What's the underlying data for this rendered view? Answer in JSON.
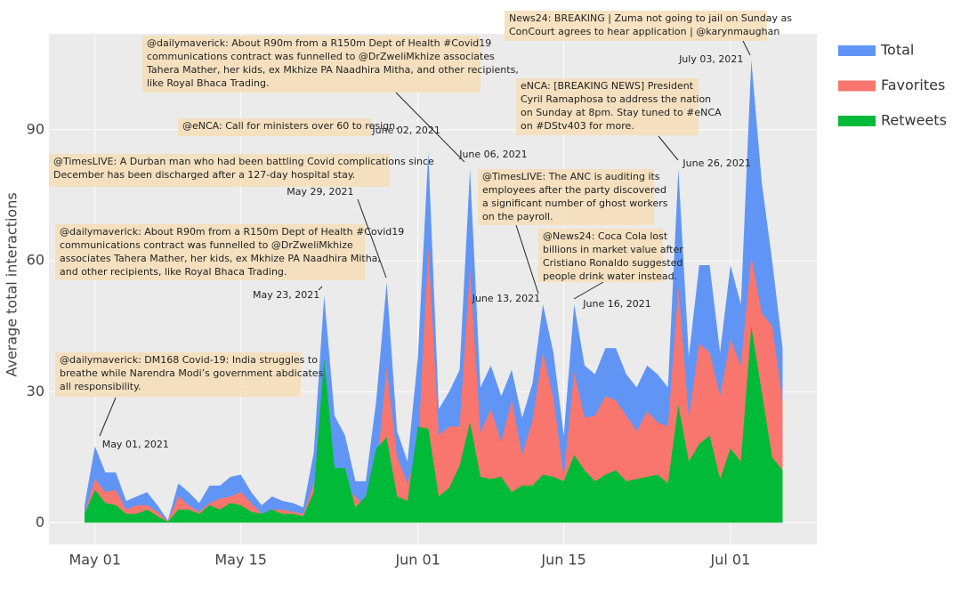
{
  "chart_data": {
    "type": "area",
    "y_label": "Average total interactions",
    "x": [
      "2021-04-30",
      "2021-05-01",
      "2021-05-02",
      "2021-05-03",
      "2021-05-04",
      "2021-05-05",
      "2021-05-06",
      "2021-05-07",
      "2021-05-08",
      "2021-05-09",
      "2021-05-10",
      "2021-05-11",
      "2021-05-12",
      "2021-05-13",
      "2021-05-14",
      "2021-05-15",
      "2021-05-16",
      "2021-05-17",
      "2021-05-18",
      "2021-05-19",
      "2021-05-20",
      "2021-05-21",
      "2021-05-22",
      "2021-05-23",
      "2021-05-24",
      "2021-05-25",
      "2021-05-26",
      "2021-05-27",
      "2021-05-28",
      "2021-05-29",
      "2021-05-30",
      "2021-05-31",
      "2021-06-01",
      "2021-06-02",
      "2021-06-03",
      "2021-06-04",
      "2021-06-05",
      "2021-06-06",
      "2021-06-07",
      "2021-06-08",
      "2021-06-09",
      "2021-06-10",
      "2021-06-11",
      "2021-06-12",
      "2021-06-13",
      "2021-06-14",
      "2021-06-15",
      "2021-06-16",
      "2021-06-17",
      "2021-06-18",
      "2021-06-19",
      "2021-06-20",
      "2021-06-21",
      "2021-06-22",
      "2021-06-23",
      "2021-06-24",
      "2021-06-25",
      "2021-06-26",
      "2021-06-27",
      "2021-06-28",
      "2021-06-29",
      "2021-06-30",
      "2021-07-01",
      "2021-07-02",
      "2021-07-03",
      "2021-07-04",
      "2021-07-05",
      "2021-07-06"
    ],
    "series": [
      {
        "name": "Total",
        "color": "#6195f5",
        "values": [
          4,
          17.5,
          11.5,
          11.5,
          5,
          6,
          7,
          4,
          0.5,
          9,
          7,
          4.5,
          8.5,
          8.5,
          10.5,
          11,
          7,
          4,
          6,
          5,
          4.5,
          3.5,
          16,
          52,
          24.5,
          20,
          9.5,
          9.5,
          28,
          55,
          21,
          14,
          38,
          85,
          26,
          30,
          35,
          81,
          31,
          36,
          29,
          35,
          24,
          32,
          50,
          39,
          20,
          50,
          36,
          34,
          40,
          40,
          34,
          31,
          36,
          34,
          31,
          81,
          38,
          59,
          59,
          39,
          59,
          50,
          106,
          78,
          60,
          40
        ]
      },
      {
        "name": "Favorites",
        "color": "#f8766d",
        "values": [
          2,
          10,
          7,
          7.5,
          3,
          4,
          4,
          2.5,
          0.3,
          6,
          4,
          2.5,
          4.5,
          5.5,
          6,
          7,
          4.5,
          2,
          3,
          3,
          2.5,
          2,
          9,
          14.5,
          12,
          7.5,
          6,
          3.5,
          11,
          35.5,
          15,
          9,
          16,
          63,
          20,
          22,
          22,
          58,
          20.5,
          26,
          18.5,
          28,
          15.5,
          23.5,
          39,
          28.5,
          10.5,
          34.5,
          24,
          24.5,
          29,
          28,
          24.5,
          21,
          25.5,
          23,
          22,
          54,
          24,
          41,
          39,
          29,
          42,
          36,
          61,
          48,
          45,
          28
        ]
      },
      {
        "name": "Retweets",
        "color": "#00ba38",
        "values": [
          2,
          7.5,
          4.5,
          4,
          2,
          2,
          3,
          1.5,
          0.2,
          3,
          3,
          2,
          4,
          3,
          4.5,
          4,
          2.5,
          2,
          3,
          2,
          2,
          1.5,
          7,
          37.5,
          12.5,
          12.5,
          3.5,
          6,
          17,
          19.5,
          6,
          5,
          22,
          21.5,
          6,
          8,
          13,
          23,
          10.5,
          10,
          10.5,
          7,
          8.5,
          8.5,
          11,
          10.5,
          9.5,
          15.5,
          12,
          9.5,
          11,
          12,
          9.5,
          10,
          10.5,
          11,
          9,
          27,
          14,
          18,
          20,
          10,
          17,
          14,
          45,
          30,
          15,
          12
        ]
      }
    ],
    "xlim": [
      "2021-04-26T14:00:00Z",
      "2021-07-09T07:00:00Z"
    ],
    "xticks": [
      {
        "value": "2021-05-01",
        "label": "May 01"
      },
      {
        "value": "2021-05-15",
        "label": "May 15"
      },
      {
        "value": "2021-06-01",
        "label": "Jun 01"
      },
      {
        "value": "2021-06-15",
        "label": "Jun 15"
      },
      {
        "value": "2021-07-01",
        "label": "Jul 01"
      }
    ],
    "ylim": [
      -5,
      112
    ],
    "yticks": [
      0,
      30,
      60,
      90
    ],
    "grid": true,
    "legend": "right",
    "annotations": [
      {
        "x": "2021-05-01",
        "label": "May 01, 2021",
        "text": [
          "@dailymaverick: DM168 Covid-19: India struggles to",
          "breathe while Narendra Modi’s government abdicates",
          "all responsibility."
        ]
      },
      {
        "x": "2021-05-23",
        "label": "May 23, 2021",
        "text": [
          "@dailymaverick: About R90m from a R150m Dept of Health #Covid19",
          "communications contract was funnelled to @DrZweliMkhize",
          "associates Tahera Mather, her kids, ex Mkhize PA Naadhira Mitha,",
          "and other recipients, like Royal Bhaca Trading."
        ]
      },
      {
        "x": "2021-05-29",
        "label": "May 29, 2021",
        "text": [
          "@TimesLIVE: A Durban man who had been battling Covid complications since",
          "December has been discharged after a 127-day hospital stay."
        ]
      },
      {
        "x": "2021-06-02",
        "label": "June 02, 2021",
        "text": [
          "@eNCA: Call for ministers over 60 to resign."
        ]
      },
      {
        "x": "2021-06-06",
        "label": "June 06, 2021",
        "text": [
          "@dailymaverick: About R90m from a R150m Dept of Health #Covid19",
          "communications contract was funnelled to @DrZweliMkhize associates",
          "Tahera Mather, her kids, ex Mkhize PA Naadhira Mitha, and other recipients,",
          "like Royal Bhaca Trading."
        ]
      },
      {
        "x": "2021-06-13",
        "label": "June 13, 2021",
        "text": [
          "@TimesLIVE: The ANC is auditing its",
          "employees after the party discovered",
          "a significant number of ghost workers",
          "on the payroll."
        ]
      },
      {
        "x": "2021-06-16",
        "label": "June 16, 2021",
        "text": [
          "@News24: Coca Cola lost",
          "billions in market value after",
          "Cristiano Ronaldo suggested",
          "people drink water instead."
        ]
      },
      {
        "x": "2021-06-26",
        "label": "June 26, 2021",
        "text": [
          "eNCA: [BREAKING NEWS] President",
          "Cyril Ramaphosa to address the nation",
          "on Sunday at 8pm. Stay tuned to #eNCA",
          "on #DStv403 for more."
        ]
      },
      {
        "x": "2021-07-03",
        "label": "July 03, 2021",
        "text": [
          "News24: BREAKING | Zuma not going to jail on Sunday as",
          "ConCourt agrees to hear application | @karynmaughan"
        ]
      }
    ]
  }
}
